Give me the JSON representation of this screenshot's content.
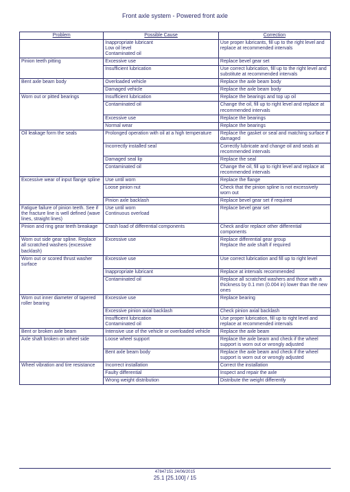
{
  "title": "Front axle system - Powered front axle",
  "headers": {
    "problem": "Problem",
    "cause": "Possible Cause",
    "correction": "Correction"
  },
  "rows": [
    {
      "p": "",
      "c": "Inappropriate lubricant\nLow oil level\nContaminated oil",
      "r": "Use proper lubricants, fill up to the right level and replace at recommended intervals",
      "pTop": false,
      "pBot": true
    },
    {
      "p": "Pinion teeth pitting",
      "c": "Excessive use",
      "r": "Replace bevel gear set",
      "pBot": false
    },
    {
      "p": "",
      "c": "Insufficient lubrication",
      "r": "Use correct lubrication, fill up to the right level and substitute at recommended intervals",
      "pTop": false
    },
    {
      "p": "Bent axle beam body",
      "c": "Overloaded vehicle",
      "r": "Replace the axle beam body",
      "pBot": false
    },
    {
      "p": "",
      "c": "Damaged vehicle",
      "r": "Replace the axle beam body",
      "pTop": false
    },
    {
      "p": "Worn out or pitted bearings",
      "c": "Insufficient lubrication",
      "r": "Replace the bearings and top up oil",
      "pBot": false
    },
    {
      "p": "",
      "c": "Contaminated oil",
      "r": "Change the oil, fill up to right level and replace at recommended intervals",
      "pTop": false,
      "pBot": false
    },
    {
      "p": "",
      "c": "Excessive use",
      "r": "Replace the bearings",
      "pTop": false,
      "pBot": false
    },
    {
      "p": "",
      "c": "Normal wear",
      "r": "Replace the bearings",
      "pTop": false
    },
    {
      "p": "Oil leakage form the seals",
      "c": "Prolonged operation with oil at a high temperature",
      "r": "Replace the gasket or seal and matching surface if damaged",
      "pBot": false
    },
    {
      "p": "",
      "c": "Incorrectly installed seal",
      "r": "Correctly lubricate and change oil and seals at recommended intervals",
      "pTop": false,
      "pBot": false
    },
    {
      "p": "",
      "c": "Damaged seal lip",
      "r": "Replace the seal",
      "pTop": false,
      "pBot": false
    },
    {
      "p": "",
      "c": "Contaminated oil",
      "r": "Change the oil, fill up to right level and replace at recommended intervals",
      "pTop": false
    },
    {
      "p": "Excessive wear of input flange spline",
      "c": "Use until worn",
      "r": "Replace the flange",
      "pBot": false
    },
    {
      "p": "",
      "c": "Loose pinion nut",
      "r": "Check that the pinion spline is not excessively worn out",
      "pTop": false,
      "pBot": false
    },
    {
      "p": "",
      "c": "Pinion axle backlash",
      "r": "Replace bevel gear set if required",
      "pTop": false
    },
    {
      "p": "Fatigue failure of pinion teeth.  See if the fracture line is well defined (wave lines, straight lines)",
      "c": "Use until worn\nContinuous overload",
      "r": "Replace bevel gear set"
    },
    {
      "p": "Pinion and ring gear teeth breakage",
      "c": "Crash load of differential components",
      "r": "Check and/or replace other differential components"
    },
    {
      "p": "Worn out side gear spline. Replace all scratched washers (excessive backlash)",
      "c": "Excessive use",
      "r": "Replace differential gear group\nReplace the axle shaft if required"
    },
    {
      "p": "Worn out or scored thrust washer surface",
      "c": "Excessive use",
      "r": "Use correct lubrication and fill up to right level",
      "pBot": false
    },
    {
      "p": "",
      "c": "Inappropriate lubricant",
      "r": "Replace at intervals recommended",
      "pTop": false,
      "pBot": false
    },
    {
      "p": "",
      "c": "Contaminated oil",
      "r": "Replace all scratched washers and those with a thickness by 0.1 mm (0.004 in) lower than the new ones",
      "pTop": false
    },
    {
      "p": "Worn out inner diameter of tapered roller bearing",
      "c": "Excessive use",
      "r": "Replace bearing",
      "pBot": false
    },
    {
      "p": "",
      "c": "Excessive pinion axial backlash",
      "r": "Check pinion axial backlash",
      "pTop": false,
      "pBot": false
    },
    {
      "p": "",
      "c": "Insufficient lubrication\nContaminated oil",
      "r": "Use proper lubrication, fill up to right level and replace at recommended intervals",
      "pTop": false
    },
    {
      "p": "Bent or broken axle beam",
      "c": "Intensive use of the vehicle or overloaded vehicle",
      "r": "Replace the axle beam"
    },
    {
      "p": "Axle shaft broken on wheel side",
      "c": "Loose wheel support",
      "r": "Replace the axle beam and check if the wheel support is worn out or wrongly adjusted",
      "pBot": false
    },
    {
      "p": "",
      "c": "Bent axle beam body",
      "r": "Replace the axle beam and check if the wheel support is worn out or wrongly adjusted",
      "pTop": false
    },
    {
      "p": "Wheel vibration and tire resistance",
      "c": "Incorrect installation",
      "r": "Correct the installation",
      "pBot": false
    },
    {
      "p": "",
      "c": "Faulty differential",
      "r": "Inspect and repair the axle",
      "pTop": false,
      "pBot": false
    },
    {
      "p": "",
      "c": "Wrong weight distribution",
      "r": "Distribute the weight differently",
      "pTop": false
    }
  ],
  "footer": {
    "line1": "47847151 24/06/2015",
    "line2": "25.1 [25.100] / 15"
  }
}
